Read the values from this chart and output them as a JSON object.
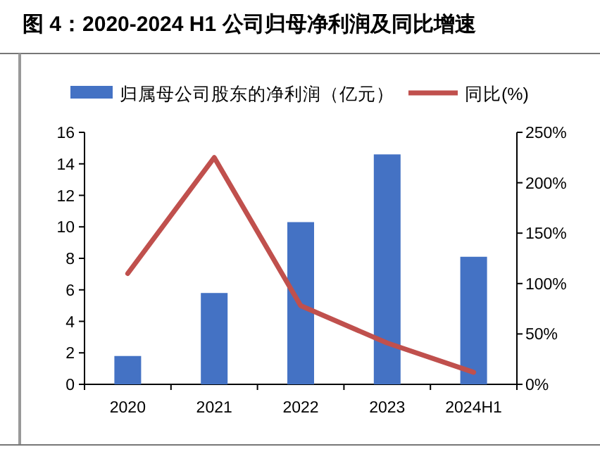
{
  "chart_data": {
    "type": "bar",
    "title": "图 4：2020-2024 H1 公司归母净利润及同比增速",
    "categories": [
      "2020",
      "2021",
      "2022",
      "2023",
      "2024H1"
    ],
    "series": [
      {
        "name": "归属母公司股东的净利润（亿元）",
        "color": "#4472c4",
        "values": [
          1.8,
          5.8,
          10.3,
          14.6,
          8.1
        ]
      },
      {
        "name": "同比(%)",
        "type": "line",
        "axis": "y2",
        "color": "#c0504d",
        "values": [
          110,
          225,
          78,
          41,
          12
        ]
      }
    ],
    "ylim": [
      0,
      16
    ],
    "yticks": [
      0,
      2,
      4,
      6,
      8,
      10,
      12,
      14,
      16
    ],
    "y2lim": [
      0,
      250
    ],
    "y2ticks": [
      {
        "value": 0,
        "label": "0%"
      },
      {
        "value": 50,
        "label": "50%"
      },
      {
        "value": 100,
        "label": "100%"
      },
      {
        "value": 150,
        "label": "150%"
      },
      {
        "value": 200,
        "label": "200%"
      },
      {
        "value": 250,
        "label": "250%"
      }
    ],
    "legend": "top",
    "grid": false
  }
}
